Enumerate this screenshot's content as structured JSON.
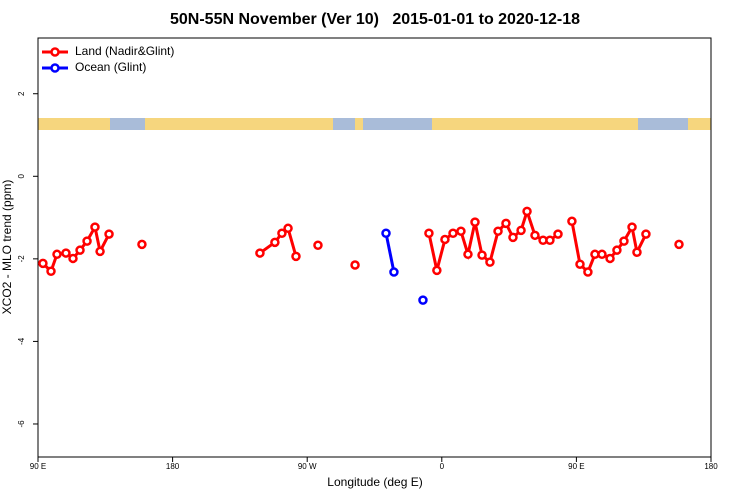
{
  "chart_data": {
    "type": "line",
    "title": "50N-55N November (Ver 10)   2015-01-01 to 2020-12-18",
    "x_label": "Longitude (deg E)",
    "y_label": "XCO2 - MLO trend (ppm)",
    "xlim": [
      90,
      540
    ],
    "xticks": [
      {
        "value": 90,
        "label": "90 E"
      },
      180,
      {
        "value": 270,
        "label": "90 W"
      },
      {
        "value": 360,
        "label": "0"
      },
      {
        "value": 450,
        "label": "90 E"
      },
      {
        "value": 540,
        "label": "180"
      }
    ],
    "ylim": [
      -6.8,
      3.35
    ],
    "yticks": [
      2,
      0,
      -2,
      -4,
      -6
    ],
    "legend": "top-left",
    "series": [
      {
        "name": "Land (Nadir&Glint)",
        "color": "#ff0000",
        "x": [
          93.3,
          98.7,
          102.7,
          108.7,
          113.4,
          118.1,
          122.8,
          128.1,
          131.5,
          137.5,
          null,
          159.5,
          null,
          238.4,
          248.4,
          253.1,
          257.2,
          262.5,
          null,
          277.2,
          null,
          302.0,
          null,
          351.4,
          356.7,
          362.1,
          367.5,
          372.8,
          377.5,
          382.2,
          386.9,
          392.2,
          397.6,
          402.9,
          407.6,
          413.0,
          417.0,
          422.3,
          427.7,
          432.3,
          437.7,
          null,
          447.0,
          452.4,
          457.7,
          462.4,
          467.1,
          472.5,
          477.1,
          481.8,
          487.2,
          490.5,
          496.5,
          null,
          518.6
        ],
        "values": [
          -2.11,
          -2.3,
          -1.89,
          -1.86,
          -1.99,
          -1.79,
          -1.57,
          -1.23,
          -1.82,
          -1.4,
          null,
          -1.65,
          null,
          -1.86,
          -1.6,
          -1.38,
          -1.26,
          -1.94,
          null,
          -1.67,
          null,
          -2.15,
          null,
          -1.38,
          -2.28,
          -1.53,
          -1.38,
          -1.33,
          -1.89,
          -1.11,
          -1.91,
          -2.08,
          -1.33,
          -1.14,
          -1.48,
          -1.31,
          -0.85,
          -1.43,
          -1.55,
          -1.55,
          -1.4,
          null,
          -1.09,
          -2.13,
          -2.32,
          -1.89,
          -1.89,
          -1.99,
          -1.79,
          -1.57,
          -1.23,
          -1.84,
          -1.4,
          null,
          -1.65
        ]
      },
      {
        "name": "Ocean (Glint)",
        "color": "#0000ff",
        "x": [
          322.7,
          328.0,
          null,
          347.4
        ],
        "values": [
          -1.38,
          -2.32,
          null,
          -3.0
        ]
      }
    ]
  }
}
